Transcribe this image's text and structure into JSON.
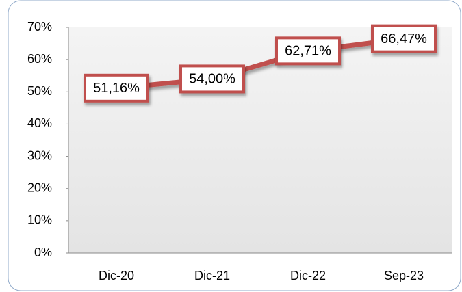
{
  "chart_data": {
    "type": "line",
    "categories": [
      "Dic-20",
      "Dic-21",
      "Dic-22",
      "Sep-23"
    ],
    "series": [
      {
        "color": "#c0504d",
        "values": [
          51.16,
          54.0,
          62.71,
          66.47
        ],
        "value_labels": [
          "51,16%",
          "54,00%",
          "62,71%",
          "66,47%"
        ]
      }
    ],
    "ylim": [
      0,
      70
    ],
    "yticks": [
      {
        "value": 0,
        "label": "0%"
      },
      {
        "value": 10,
        "label": "10%"
      },
      {
        "value": 20,
        "label": "20%"
      },
      {
        "value": 30,
        "label": "30%"
      },
      {
        "value": 40,
        "label": "40%"
      },
      {
        "value": 50,
        "label": "50%"
      },
      {
        "value": 60,
        "label": "60%"
      },
      {
        "value": 70,
        "label": "70%"
      }
    ],
    "grid": false
  }
}
